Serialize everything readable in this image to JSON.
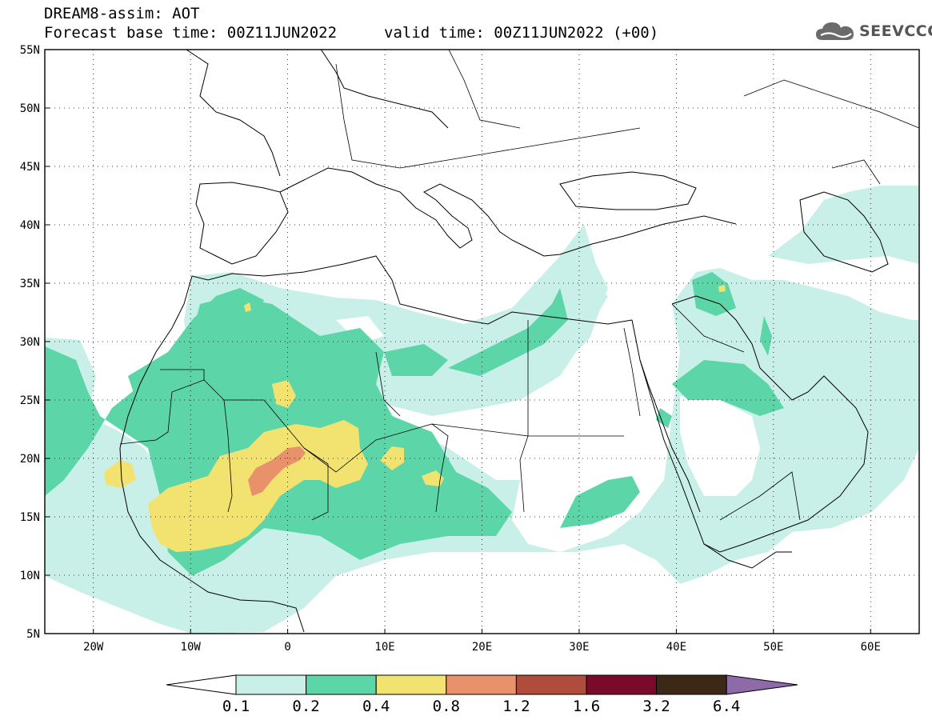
{
  "title": {
    "line1": "DREAM8-assim: AOT",
    "base_time": "Forecast base time: 00Z11JUN2022",
    "valid_time": "valid time: 00Z11JUN2022 (+00)"
  },
  "logo": {
    "text": "SEEVCCC",
    "icon": "cloud-logo-icon"
  },
  "map": {
    "lat_ticks": [
      "55N",
      "50N",
      "45N",
      "40N",
      "35N",
      "30N",
      "25N",
      "20N",
      "15N",
      "10N",
      "5N"
    ],
    "lat_values": [
      55,
      50,
      45,
      40,
      35,
      30,
      25,
      20,
      15,
      10,
      5
    ],
    "lon_ticks": [
      "20W",
      "10W",
      "0",
      "10E",
      "20E",
      "30E",
      "40E",
      "50E",
      "60E"
    ],
    "lon_values": [
      -20,
      -10,
      0,
      10,
      20,
      30,
      40,
      50,
      60
    ],
    "extent": {
      "lon_min": -25,
      "lon_max": 65,
      "lat_min": 5,
      "lat_max": 55
    },
    "gridlines": "dotted"
  },
  "colorbar": {
    "labels": [
      "0.1",
      "0.2",
      "0.4",
      "0.8",
      "1.2",
      "1.6",
      "3.2",
      "6.4"
    ],
    "colors": [
      "#ffffff",
      "#c8f0e8",
      "#5cd6a8",
      "#f2e270",
      "#e8916a",
      "#b04c3c",
      "#7a0a2c",
      "#3c2816",
      "#8e6aa8"
    ]
  }
}
